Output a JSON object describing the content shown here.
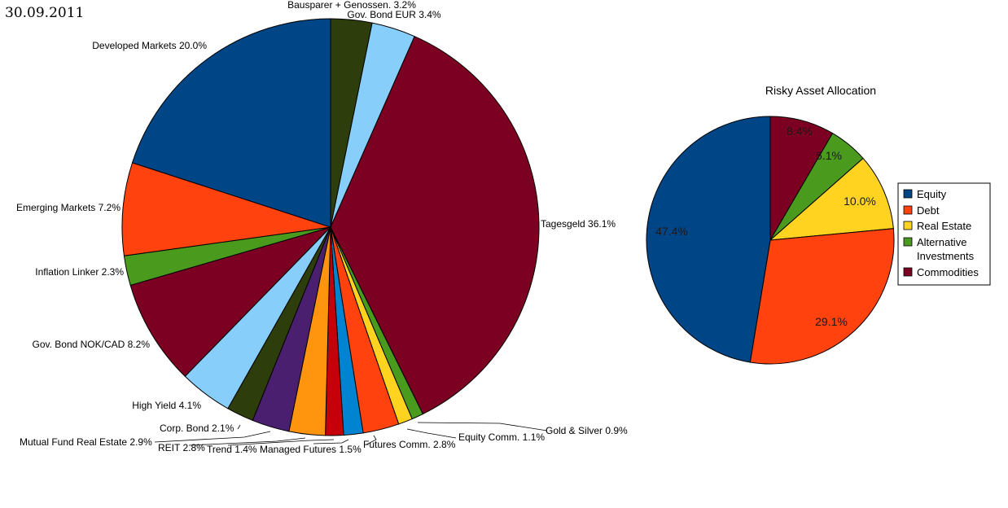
{
  "date_label": "30.09.2011",
  "chart_data": [
    {
      "type": "pie",
      "title": "",
      "slices": [
        {
          "label": "Bausparer + Genossen.",
          "value": 3.2,
          "text": "Bausparer + Genossen. 3.2%",
          "color": "#2e3d0c"
        },
        {
          "label": "Gov. Bond EUR",
          "value": 3.4,
          "text": "Gov. Bond EUR 3.4%",
          "color": "#87cefa"
        },
        {
          "label": "Tagesgeld",
          "value": 36.1,
          "text": "Tagesgeld 36.1%",
          "color": "#7b0022"
        },
        {
          "label": "Gold & Silver",
          "value": 0.9,
          "text": "Gold & Silver 0.9%",
          "color": "#4a9a1e"
        },
        {
          "label": "Equity Comm.",
          "value": 1.1,
          "text": "Equity Comm. 1.1%",
          "color": "#ffd320"
        },
        {
          "label": "Futures Comm.",
          "value": 2.8,
          "text": "Futures Comm. 2.8%",
          "color": "#ff420e"
        },
        {
          "label": "Managed Futures",
          "value": 1.5,
          "text": "Managed Futures 1.5%",
          "color": "#0084d1"
        },
        {
          "label": "Trend",
          "value": 1.4,
          "text": "Trend 1.4%",
          "color": "#c5000b"
        },
        {
          "label": "REIT",
          "value": 2.8,
          "text": "REIT 2.8%",
          "color": "#ff950e"
        },
        {
          "label": "Mutual Fund Real Estate",
          "value": 2.9,
          "text": "Mutual Fund Real Estate 2.9%",
          "color": "#4b1f6f"
        },
        {
          "label": "Corp. Bond",
          "value": 2.1,
          "text": "Corp. Bond 2.1%",
          "color": "#2e3d0c"
        },
        {
          "label": "High Yield",
          "value": 4.1,
          "text": "High Yield 4.1%",
          "color": "#87cefa"
        },
        {
          "label": "Gov. Bond NOK/CAD",
          "value": 8.2,
          "text": "Gov. Bond NOK/CAD 8.2%",
          "color": "#7b0022"
        },
        {
          "label": "Inflation Linker",
          "value": 2.3,
          "text": "Inflation Linker 2.3%",
          "color": "#4a9a1e"
        },
        {
          "label": "Emerging Markets",
          "value": 7.2,
          "text": "Emerging Markets 7.2%",
          "color": "#ff420e"
        },
        {
          "label": "Developed Markets",
          "value": 20.0,
          "text": "Developed Markets 20.0%",
          "color": "#004586"
        }
      ]
    },
    {
      "type": "pie",
      "title": "Risky Asset Allocation",
      "legend_position": "right",
      "slices": [
        {
          "label": "Commodities",
          "value": 8.4,
          "text": "8.4%",
          "color": "#7b0022"
        },
        {
          "label": "Alternative Investments",
          "value": 5.1,
          "text": "5.1%",
          "color": "#4a9a1e"
        },
        {
          "label": "Real Estate",
          "value": 10.0,
          "text": "10.0%",
          "color": "#ffd320"
        },
        {
          "label": "Debt",
          "value": 29.1,
          "text": "29.1%",
          "color": "#ff420e"
        },
        {
          "label": "Equity",
          "value": 47.4,
          "text": "47.4%",
          "color": "#004586"
        }
      ],
      "legend": [
        {
          "lines": [
            "Equity"
          ],
          "color": "#004586"
        },
        {
          "lines": [
            "Debt"
          ],
          "color": "#ff420e"
        },
        {
          "lines": [
            "Real Estate"
          ],
          "color": "#ffd320"
        },
        {
          "lines": [
            "Alternative",
            "Investments"
          ],
          "color": "#4a9a1e"
        },
        {
          "lines": [
            "Commodities"
          ],
          "color": "#7b0022"
        }
      ]
    }
  ]
}
